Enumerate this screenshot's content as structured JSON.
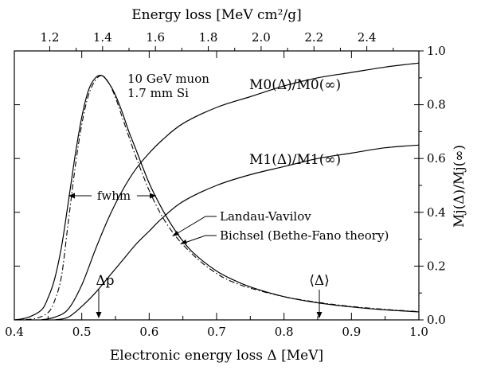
{
  "chart_data": {
    "type": "line",
    "title": "",
    "xlabel": "Electronic energy loss Δ  [MeV]",
    "xlabel_top": "Energy loss  [MeV cm²/g]",
    "ylabel_right": "Mj(Δ)/Mj(∞)",
    "xlim": [
      0.4,
      1.0
    ],
    "xlim_top": [
      1.066,
      2.597
    ],
    "ylim_right": [
      0.0,
      1.0
    ],
    "x_ticks": [
      "0.4",
      "0.5",
      "0.6",
      "0.7",
      "0.8",
      "0.9",
      "1.0"
    ],
    "x_ticks_top": [
      "1.2",
      "1.4",
      "1.6",
      "1.8",
      "2.0",
      "2.2",
      "2.4"
    ],
    "y_ticks_right": [
      "0.0",
      "0.2",
      "0.4",
      "0.6",
      "0.8",
      "1.0"
    ],
    "grid": false,
    "annotations": {
      "particle": "10 GeV muon",
      "absorber": "1.7 mm Si",
      "fwhm": "fwhm",
      "delta_p": "Δp",
      "mean_delta": "⟨Δ⟩",
      "landau": "Landau-Vavilov",
      "bichsel": "Bichsel (Bethe-Fano theory)",
      "m0_label": "M0(Δ)/M0(∞)",
      "m1_label": "M1(Δ)/M1(∞)"
    },
    "markers": {
      "delta_p": 0.526,
      "mean_delta": 0.852
    },
    "series": [
      {
        "name": "Landau-Vavilov",
        "style": "solid",
        "axis": "left-relative",
        "x": [
          0.4,
          0.42,
          0.44,
          0.45,
          0.46,
          0.47,
          0.48,
          0.49,
          0.5,
          0.51,
          0.52,
          0.53,
          0.54,
          0.55,
          0.56,
          0.57,
          0.58,
          0.6,
          0.62,
          0.64,
          0.66,
          0.68,
          0.7,
          0.72,
          0.75,
          0.8,
          0.85,
          0.9,
          0.95,
          1.0
        ],
        "y": [
          0.0,
          0.01,
          0.04,
          0.09,
          0.17,
          0.3,
          0.48,
          0.67,
          0.83,
          0.94,
          0.99,
          1.0,
          0.97,
          0.92,
          0.85,
          0.77,
          0.7,
          0.56,
          0.45,
          0.36,
          0.29,
          0.24,
          0.2,
          0.17,
          0.135,
          0.095,
          0.07,
          0.053,
          0.041,
          0.033
        ]
      },
      {
        "name": "Bichsel (Bethe-Fano theory)",
        "style": "dashdot",
        "axis": "left-relative",
        "x": [
          0.4,
          0.43,
          0.45,
          0.46,
          0.47,
          0.48,
          0.49,
          0.5,
          0.51,
          0.52,
          0.53,
          0.54,
          0.55,
          0.56,
          0.57,
          0.58,
          0.6,
          0.62,
          0.64,
          0.66,
          0.68,
          0.7,
          0.72,
          0.75,
          0.8,
          0.85,
          0.9,
          0.95,
          1.0
        ],
        "y": [
          0.0,
          0.005,
          0.03,
          0.08,
          0.18,
          0.4,
          0.62,
          0.8,
          0.92,
          0.98,
          1.0,
          0.97,
          0.91,
          0.83,
          0.75,
          0.67,
          0.53,
          0.42,
          0.34,
          0.28,
          0.23,
          0.19,
          0.16,
          0.13,
          0.095,
          0.072,
          0.055,
          0.043,
          0.034
        ]
      },
      {
        "name": "M0(Δ)/M0(∞)",
        "style": "solid",
        "axis": "right",
        "x": [
          0.44,
          0.46,
          0.48,
          0.5,
          0.52,
          0.54,
          0.56,
          0.58,
          0.6,
          0.62,
          0.65,
          0.7,
          0.75,
          0.8,
          0.85,
          0.9,
          0.95,
          1.0
        ],
        "y": [
          0.0,
          0.01,
          0.04,
          0.13,
          0.26,
          0.38,
          0.48,
          0.56,
          0.62,
          0.67,
          0.73,
          0.79,
          0.83,
          0.87,
          0.9,
          0.92,
          0.94,
          0.955
        ]
      },
      {
        "name": "M1(Δ)/M1(∞)",
        "style": "solid",
        "axis": "right",
        "x": [
          0.46,
          0.48,
          0.5,
          0.52,
          0.54,
          0.56,
          0.58,
          0.6,
          0.62,
          0.65,
          0.7,
          0.75,
          0.8,
          0.85,
          0.9,
          0.95,
          1.0
        ],
        "y": [
          0.0,
          0.01,
          0.05,
          0.1,
          0.16,
          0.22,
          0.28,
          0.33,
          0.38,
          0.44,
          0.5,
          0.54,
          0.57,
          0.6,
          0.62,
          0.64,
          0.65
        ]
      }
    ]
  }
}
